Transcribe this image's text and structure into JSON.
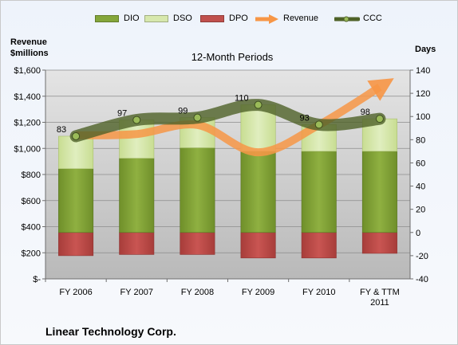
{
  "company": "Linear Technology Corp.",
  "legend": {
    "dio": "DIO",
    "dso": "DSO",
    "dpo": "DPO",
    "revenue": "Revenue",
    "ccc": "CCC"
  },
  "colors": {
    "dio": "#84a63a",
    "dso": "#d7e8ad",
    "dpo": "#c0504d",
    "revenue": "#f79646",
    "ccc": "#4f6228"
  },
  "chart_data": {
    "type": "bar",
    "title": "12-Month Periods",
    "ylabel_left": [
      "Revenue",
      "$millions"
    ],
    "ylabel_right": "Days",
    "categories": [
      [
        "FY 2006"
      ],
      [
        "FY 2007"
      ],
      [
        "FY 2008"
      ],
      [
        "FY 2009"
      ],
      [
        "FY 2010"
      ],
      [
        "FY & TTM",
        "2011"
      ]
    ],
    "left_axis": {
      "min": 0,
      "max": 1600,
      "step": 200,
      "ticks": [
        "$-",
        "$200",
        "$400",
        "$600",
        "$800",
        "$1,000",
        "$1,200",
        "$1,400",
        "$1,600"
      ]
    },
    "right_axis": {
      "min": -40,
      "max": 140,
      "step": 20
    },
    "grid": true,
    "legend_position": "top",
    "series": [
      {
        "name": "DIO",
        "type": "bar",
        "stack": "positive",
        "values": [
          55,
          64,
          73,
          70,
          70,
          70
        ]
      },
      {
        "name": "DSO",
        "type": "bar",
        "stack": "positive",
        "values": [
          28,
          33,
          26,
          40,
          23,
          28
        ]
      },
      {
        "name": "DPO",
        "type": "bar",
        "stack": "negative",
        "values": [
          -20,
          -19,
          -19,
          -22,
          -22,
          -18
        ]
      },
      {
        "name": "Revenue",
        "type": "line",
        "axis": "left",
        "values": [
          1100,
          1110,
          1180,
          970,
          1180,
          1470
        ]
      },
      {
        "name": "CCC",
        "type": "line",
        "axis": "right",
        "values": [
          83,
          97,
          99,
          110,
          93,
          98
        ],
        "data_labels": [
          "83",
          "97",
          "99",
          "110",
          "93",
          "98"
        ]
      }
    ]
  }
}
